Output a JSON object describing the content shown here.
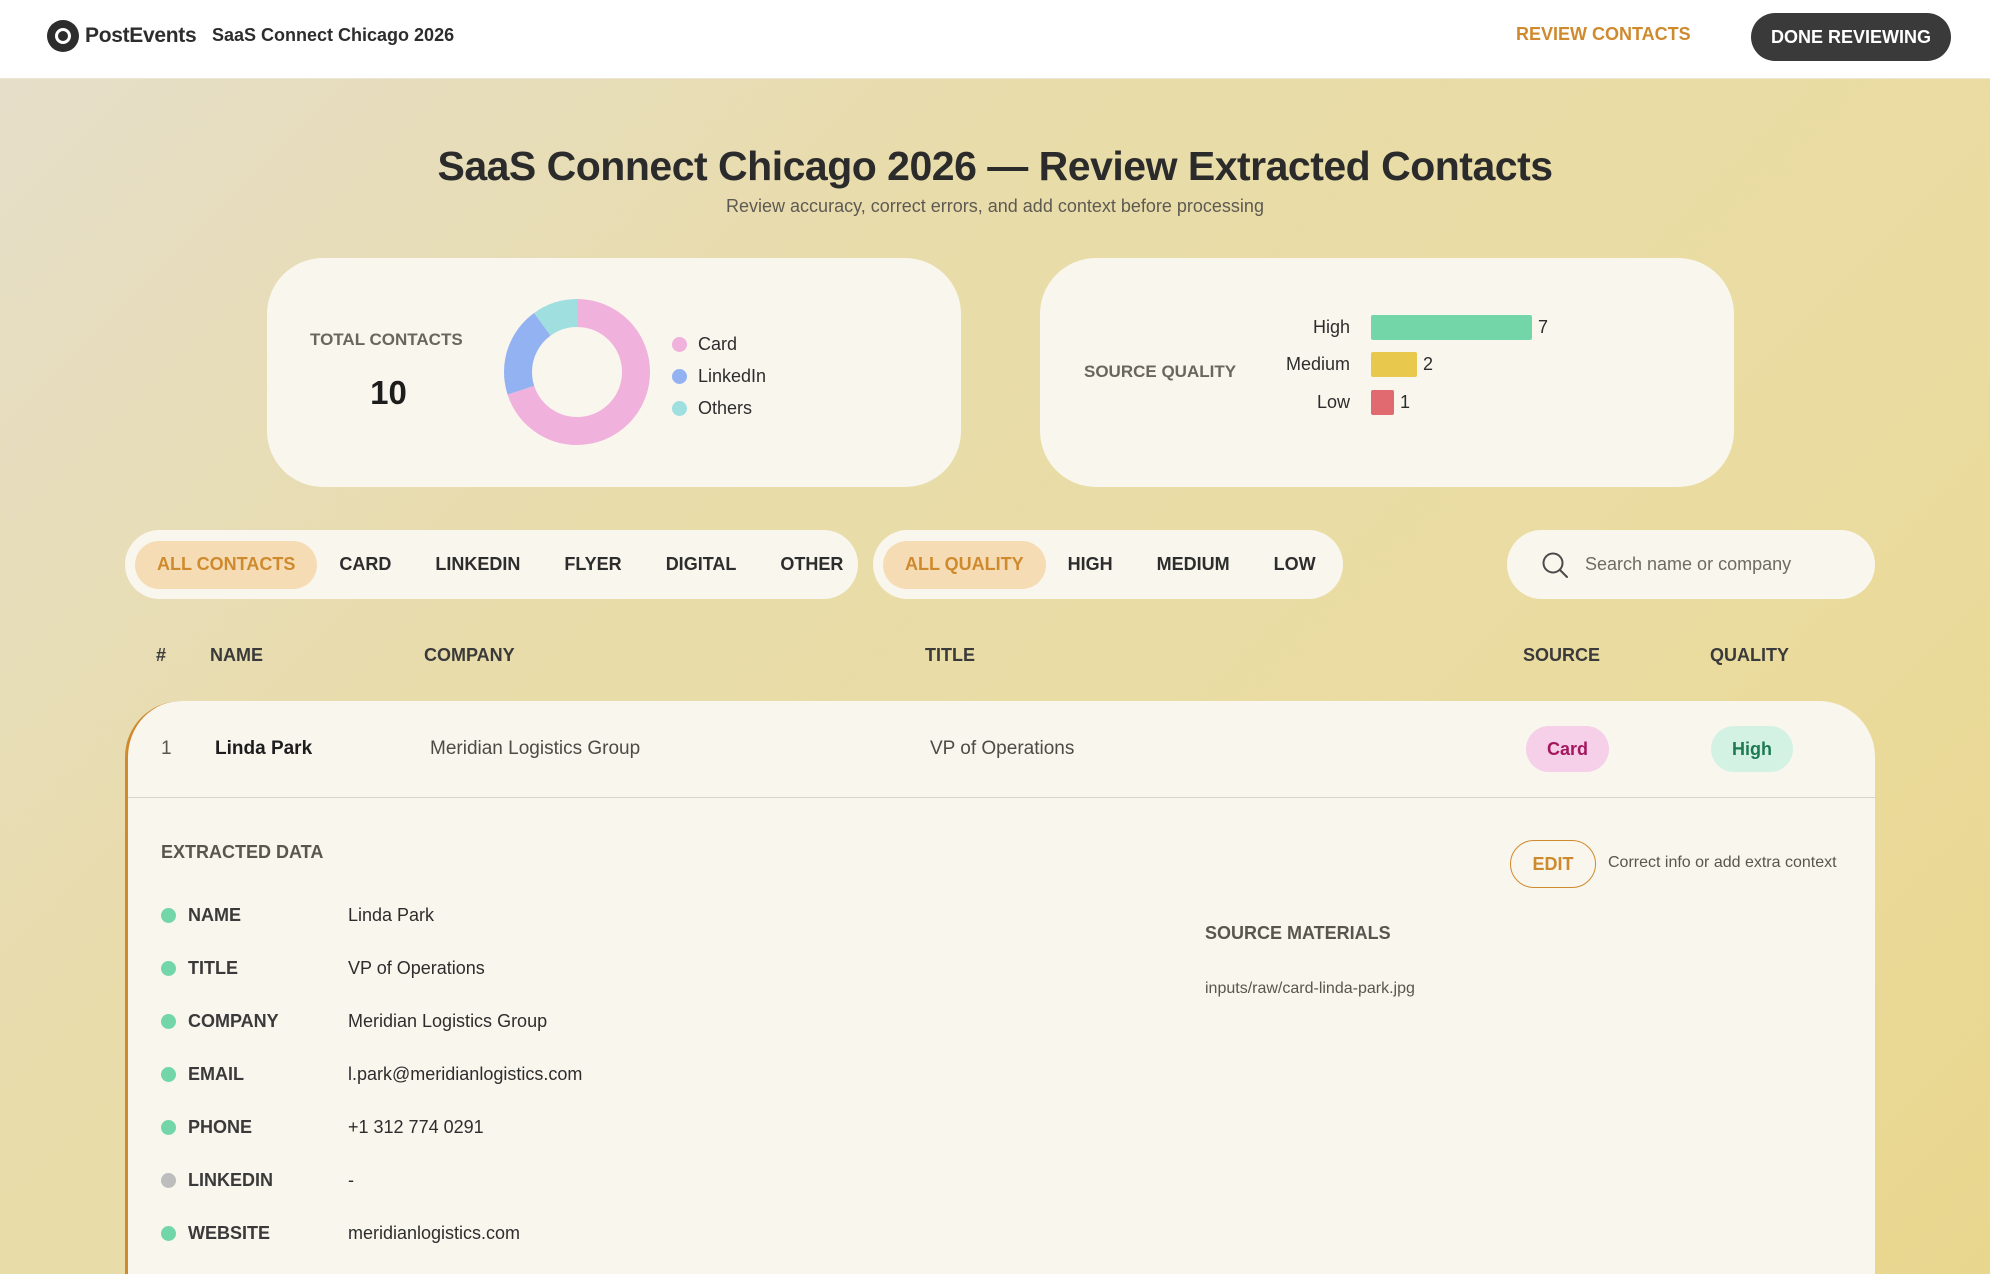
{
  "app": {
    "logo_text": "PostEvents",
    "event_name": "SaaS Connect Chicago 2026"
  },
  "nav": {
    "review_label": "REVIEW CONTACTS",
    "done_label": "DONE REVIEWING"
  },
  "header": {
    "title": "SaaS Connect Chicago 2026 — Review Extracted Contacts",
    "subtitle": "Review accuracy, correct errors, and add context before processing"
  },
  "summary": {
    "total_label": "TOTAL CONTACTS",
    "total_value": "10",
    "quality_label": "SOURCE QUALITY"
  },
  "chart_data": [
    {
      "type": "pie",
      "categories": [
        "Card",
        "LinkedIn",
        "Others"
      ],
      "values": [
        7,
        2,
        1
      ],
      "colors": [
        "#f0b1dc",
        "#93b2f2",
        "#9fdfe0"
      ]
    },
    {
      "type": "bar",
      "categories": [
        "High",
        "Medium",
        "Low"
      ],
      "values": [
        7,
        2,
        1
      ],
      "colors": [
        "#72d6a9",
        "#e8c94d",
        "#e06a70"
      ]
    }
  ],
  "filters": {
    "source": [
      "ALL CONTACTS",
      "CARD",
      "LINKEDIN",
      "FLYER",
      "DIGITAL",
      "OTHER"
    ],
    "quality": [
      "ALL QUALITY",
      "HIGH",
      "MEDIUM",
      "LOW"
    ]
  },
  "search": {
    "placeholder": "Search name or company",
    "value": ""
  },
  "table": {
    "columns": [
      "#",
      "NAME",
      "COMPANY",
      "TITLE",
      "SOURCE",
      "QUALITY"
    ],
    "rows": [
      {
        "num": "1",
        "name": "Linda Park",
        "company": "Meridian Logistics Group",
        "title": "VP of Operations",
        "source": "Card",
        "quality": "High"
      }
    ]
  },
  "detail": {
    "title": "EXTRACTED DATA",
    "edit_label": "EDIT",
    "edit_hint": "Correct info or add extra context",
    "fields": [
      {
        "label": "NAME",
        "value": "Linda Park",
        "status": "#72d6a9"
      },
      {
        "label": "TITLE",
        "value": "VP of Operations",
        "status": "#72d6a9"
      },
      {
        "label": "COMPANY",
        "value": "Meridian Logistics Group",
        "status": "#72d6a9"
      },
      {
        "label": "EMAIL",
        "value": "l.park@meridianlogistics.com",
        "status": "#72d6a9"
      },
      {
        "label": "PHONE",
        "value": "+1 312 774 0291",
        "status": "#72d6a9"
      },
      {
        "label": "LINKEDIN",
        "value": "-",
        "status": "#bdbdbd"
      },
      {
        "label": "WEBSITE",
        "value": "meridianlogistics.com",
        "status": "#72d6a9"
      }
    ],
    "sources_title": "SOURCE MATERIALS",
    "source_file": "inputs/raw/card-linda-park.jpg"
  },
  "colors": {
    "accent": "#d08a2e",
    "dark": "#3a3a3a"
  }
}
